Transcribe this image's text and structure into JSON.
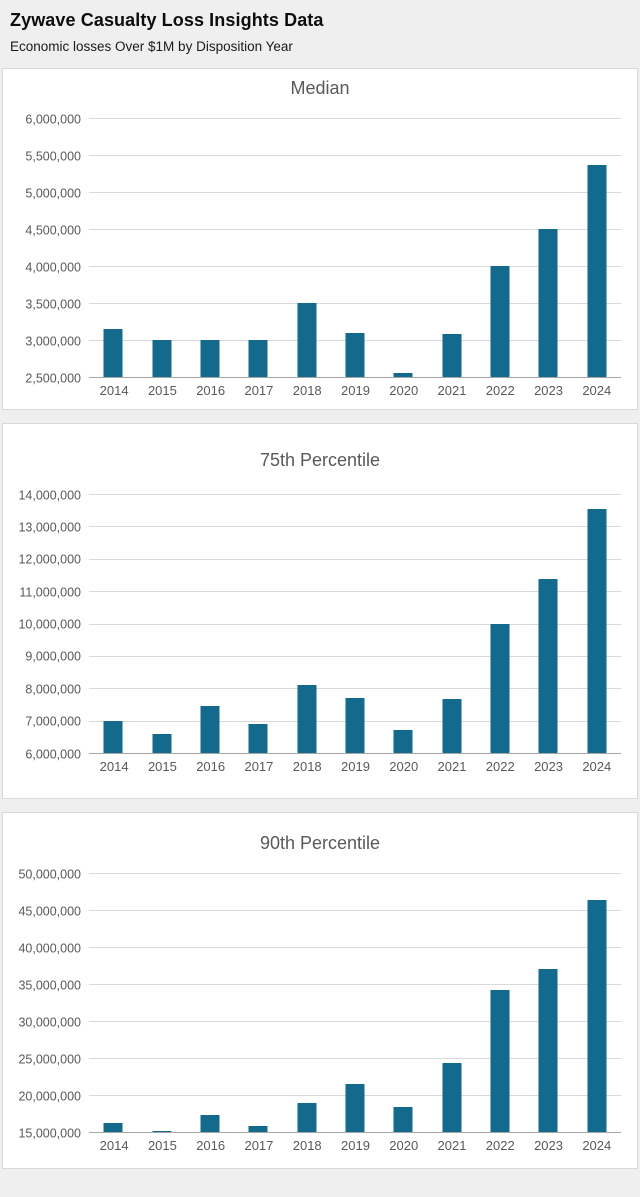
{
  "header": {
    "title": "Zywave Casualty Loss Insights Data",
    "subtitle": "Economic losses Over $1M by Disposition Year"
  },
  "theme": {
    "bar_color": "#136a8c",
    "grid_color": "#d9d9d9",
    "axis_color": "#a6a6a6",
    "text_color": "#595959",
    "page_bg": "#efefef",
    "card_bg": "#ffffff",
    "card_border": "#d9d9d9"
  },
  "chart_data": [
    {
      "type": "bar",
      "title": "Median",
      "categories": [
        "2014",
        "2015",
        "2016",
        "2017",
        "2018",
        "2019",
        "2020",
        "2021",
        "2022",
        "2023",
        "2024"
      ],
      "values": [
        3150000,
        3000000,
        3000000,
        3000000,
        3500000,
        3100000,
        2550000,
        3080000,
        4000000,
        4500000,
        5370000
      ],
      "xlabel": "",
      "ylabel": "",
      "ylim": [
        2500000,
        6000000
      ],
      "ytick_step": 500000,
      "grid": true,
      "legend": false
    },
    {
      "type": "bar",
      "title": "75th Percentile",
      "categories": [
        "2014",
        "2015",
        "2016",
        "2017",
        "2018",
        "2019",
        "2020",
        "2021",
        "2022",
        "2023",
        "2024"
      ],
      "values": [
        7000000,
        6580000,
        7450000,
        6900000,
        8100000,
        7700000,
        6700000,
        7680000,
        10000000,
        11360000,
        13550000
      ],
      "xlabel": "",
      "ylabel": "",
      "ylim": [
        6000000,
        14000000
      ],
      "ytick_step": 1000000,
      "grid": true,
      "legend": false
    },
    {
      "type": "bar",
      "title": "90th Percentile",
      "categories": [
        "2014",
        "2015",
        "2016",
        "2017",
        "2018",
        "2019",
        "2020",
        "2021",
        "2022",
        "2023",
        "2024"
      ],
      "values": [
        16200000,
        15200000,
        17250000,
        15850000,
        18900000,
        21500000,
        18400000,
        24300000,
        34200000,
        37000000,
        46300000
      ],
      "xlabel": "",
      "ylabel": "",
      "ylim": [
        15000000,
        50000000
      ],
      "ytick_step": 5000000,
      "grid": true,
      "legend": false
    }
  ]
}
